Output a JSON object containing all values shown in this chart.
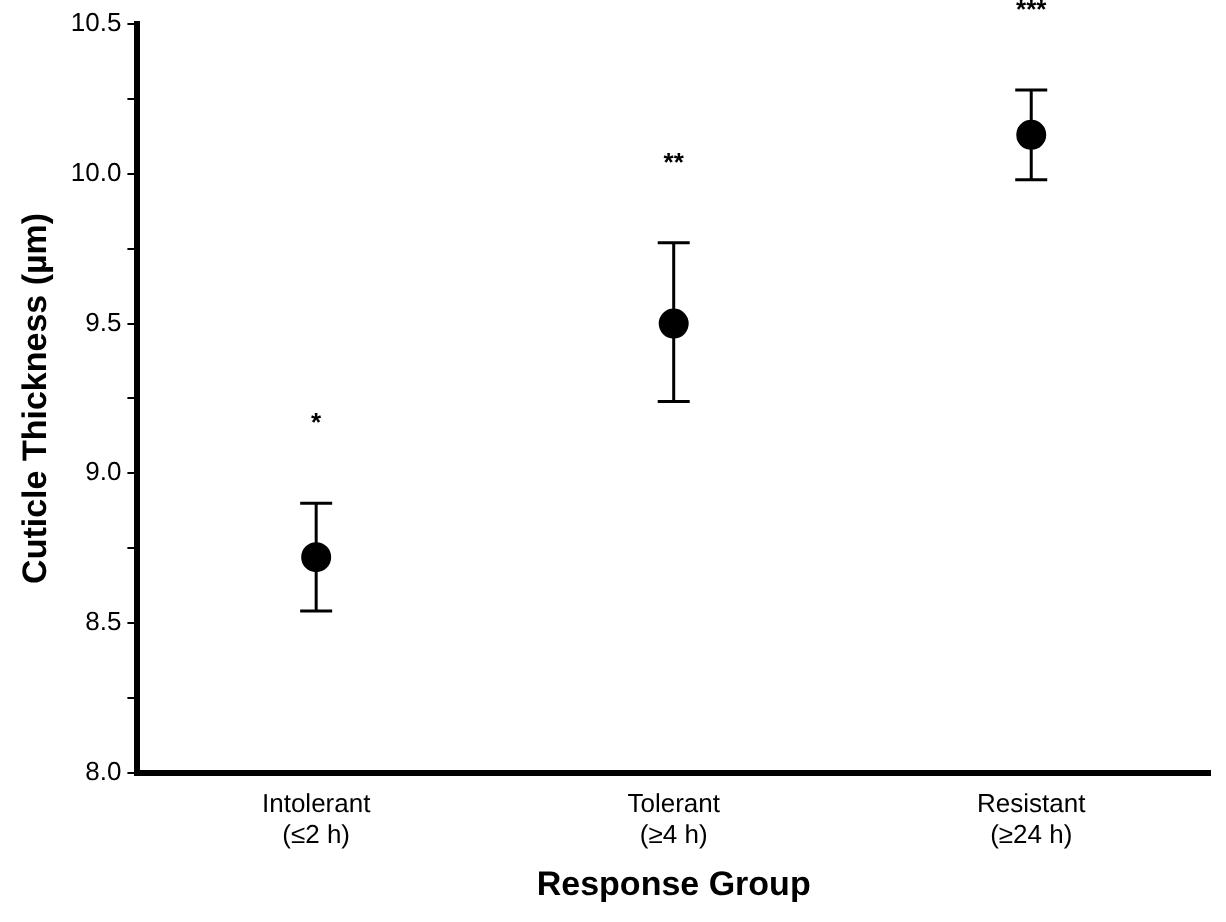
{
  "chart_data": {
    "type": "scatter",
    "xlabel": "Response Group",
    "ylabel": "Cuticle Thickness (µm)",
    "categories": [
      "Intolerant\n(≤2 h)",
      "Tolerant\n(≥4 h)",
      "Resistant\n(≥24 h)"
    ],
    "values": [
      8.72,
      9.5,
      10.13
    ],
    "errors": [
      [
        8.54,
        8.9
      ],
      [
        9.24,
        9.77
      ],
      [
        9.98,
        10.28
      ]
    ],
    "color": "#000000",
    "marker": "circle",
    "ylim": [
      8.0,
      10.5
    ],
    "yticks": [
      {
        "value": 8.0,
        "label": "8.0"
      },
      {
        "value": 8.25,
        "label": null
      },
      {
        "value": 8.5,
        "label": "8.5"
      },
      {
        "value": 8.75,
        "label": null
      },
      {
        "value": 9.0,
        "label": "9.0"
      },
      {
        "value": 9.25,
        "label": null
      },
      {
        "value": 9.5,
        "label": "9.5"
      },
      {
        "value": 9.75,
        "label": null
      },
      {
        "value": 10.0,
        "label": "10.0"
      },
      {
        "value": 10.25,
        "label": null
      },
      {
        "value": 10.5,
        "label": "10.5"
      }
    ],
    "annotations": [
      "*",
      "**",
      "***"
    ],
    "grid": false,
    "legend": false
  }
}
